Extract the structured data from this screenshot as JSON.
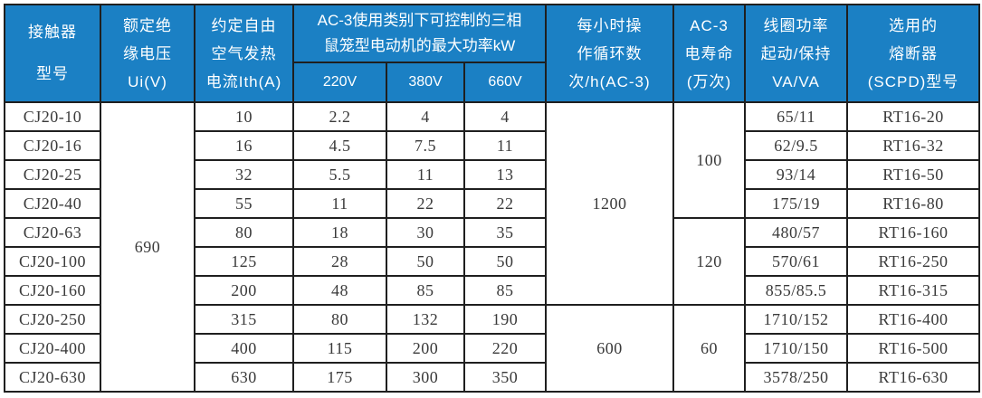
{
  "colors": {
    "header_bg": "#1b80c4",
    "header_text": "#ffffff",
    "body_text": "#3a3a3a",
    "border": "#1f1f1f",
    "background": "#ffffff"
  },
  "header": {
    "model": [
      "接触器",
      "型号"
    ],
    "insulation": [
      "额定绝",
      "缘电压",
      "Ui(V)"
    ],
    "thermal": [
      "约定自由",
      "空气发热",
      "电流Ith(A)"
    ],
    "ac3_power": [
      "AC-3使用类别下可控制的三相",
      "鼠笼型电动机的最大功率kW"
    ],
    "voltages": [
      "220V",
      "380V",
      "660V"
    ],
    "cycles": [
      "每小时操",
      "作循环数",
      "次/h(AC-3)"
    ],
    "life": [
      "AC-3",
      "电寿命",
      "(万次)"
    ],
    "coil": [
      "线圈功率",
      "起动/保持",
      "VA/VA"
    ],
    "fuse": [
      "选用的",
      "熔断器",
      "(SCPD)型号"
    ]
  },
  "table": {
    "rows": [
      {
        "model": "CJ20-10",
        "ith": "10",
        "kw220": "2.2",
        "kw380": "4",
        "kw660": "4",
        "coil": "65/11",
        "fuse": "RT16-20"
      },
      {
        "model": "CJ20-16",
        "ith": "16",
        "kw220": "4.5",
        "kw380": "7.5",
        "kw660": "11",
        "coil": "62/9.5",
        "fuse": "RT16-32"
      },
      {
        "model": "CJ20-25",
        "ith": "32",
        "kw220": "5.5",
        "kw380": "11",
        "kw660": "13",
        "coil": "93/14",
        "fuse": "RT16-50"
      },
      {
        "model": "CJ20-40",
        "ith": "55",
        "kw220": "11",
        "kw380": "22",
        "kw660": "22",
        "coil": "175/19",
        "fuse": "RT16-80"
      },
      {
        "model": "CJ20-63",
        "ith": "80",
        "kw220": "18",
        "kw380": "30",
        "kw660": "35",
        "coil": "480/57",
        "fuse": "RT16-160"
      },
      {
        "model": "CJ20-100",
        "ith": "125",
        "kw220": "28",
        "kw380": "50",
        "kw660": "50",
        "coil": "570/61",
        "fuse": "RT16-250"
      },
      {
        "model": "CJ20-160",
        "ith": "200",
        "kw220": "48",
        "kw380": "85",
        "kw660": "85",
        "coil": "855/85.5",
        "fuse": "RT16-315"
      },
      {
        "model": "CJ20-250",
        "ith": "315",
        "kw220": "80",
        "kw380": "132",
        "kw660": "190",
        "coil": "1710/152",
        "fuse": "RT16-400"
      },
      {
        "model": "CJ20-400",
        "ith": "400",
        "kw220": "115",
        "kw380": "200",
        "kw660": "220",
        "coil": "1710/150",
        "fuse": "RT16-500"
      },
      {
        "model": "CJ20-630",
        "ith": "630",
        "kw220": "175",
        "kw380": "300",
        "kw660": "350",
        "coil": "3578/250",
        "fuse": "RT16-630"
      }
    ],
    "merged": {
      "ui": [
        {
          "value": "690",
          "start": 0,
          "rows": 10
        }
      ],
      "cycles": [
        {
          "value": "1200",
          "start": 0,
          "rows": 7
        },
        {
          "value": "600",
          "start": 7,
          "rows": 3
        }
      ],
      "life": [
        {
          "value": "100",
          "start": 0,
          "rows": 4
        },
        {
          "value": "120",
          "start": 4,
          "rows": 3
        },
        {
          "value": "60",
          "start": 7,
          "rows": 3
        }
      ]
    }
  }
}
